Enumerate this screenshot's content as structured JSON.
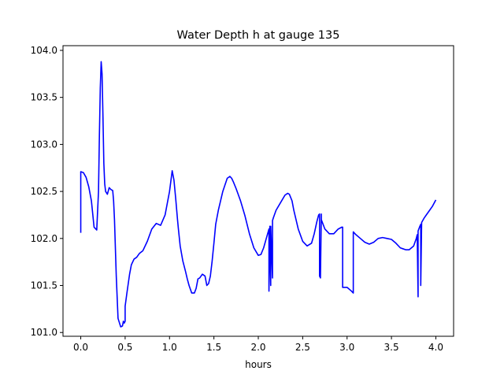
{
  "chart_data": {
    "type": "line",
    "title": "Water Depth h at gauge 135",
    "xlabel": "hours",
    "ylabel": "",
    "xlim": [
      -0.2,
      4.2
    ],
    "ylim": [
      100.96,
      104.05
    ],
    "x_ticks": [
      0.0,
      0.5,
      1.0,
      1.5,
      2.0,
      2.5,
      3.0,
      3.5,
      4.0
    ],
    "x_tick_labels": [
      "0.0",
      "0.5",
      "1.0",
      "1.5",
      "2.0",
      "2.5",
      "3.0",
      "3.5",
      "4.0"
    ],
    "y_ticks": [
      101.0,
      101.5,
      102.0,
      102.5,
      103.0,
      103.5,
      104.0
    ],
    "y_tick_labels": [
      "101.0",
      "101.5",
      "102.0",
      "102.5",
      "103.0",
      "103.5",
      "104.0"
    ],
    "grid": false,
    "series": [
      {
        "color": "#0000ff",
        "x": [
          0.0,
          0.0,
          0.03,
          0.06,
          0.09,
          0.12,
          0.15,
          0.18,
          0.2,
          0.21,
          0.22,
          0.23,
          0.24,
          0.25,
          0.26,
          0.27,
          0.28,
          0.3,
          0.32,
          0.34,
          0.36,
          0.37,
          0.38,
          0.4,
          0.42,
          0.45,
          0.47,
          0.48,
          0.49,
          0.5,
          0.5,
          0.52,
          0.55,
          0.57,
          0.6,
          0.63,
          0.66,
          0.7,
          0.75,
          0.8,
          0.85,
          0.9,
          0.95,
          0.97,
          1.0,
          1.03,
          1.05,
          1.07,
          1.09,
          1.1,
          1.12,
          1.15,
          1.18,
          1.2,
          1.22,
          1.25,
          1.28,
          1.3,
          1.32,
          1.34,
          1.37,
          1.4,
          1.42,
          1.44,
          1.46,
          1.48,
          1.5,
          1.52,
          1.55,
          1.6,
          1.65,
          1.68,
          1.7,
          1.72,
          1.75,
          1.8,
          1.85,
          1.9,
          1.95,
          2.0,
          2.03,
          2.06,
          2.09,
          2.12,
          2.12,
          2.13,
          2.14,
          2.14,
          2.16,
          2.16,
          2.17,
          2.2,
          2.25,
          2.3,
          2.33,
          2.35,
          2.38,
          2.4,
          2.45,
          2.5,
          2.55,
          2.6,
          2.63,
          2.66,
          2.68,
          2.69,
          2.69,
          2.7,
          2.71,
          2.71,
          2.75,
          2.8,
          2.85,
          2.9,
          2.94,
          2.95,
          2.95,
          2.98,
          3.0,
          3.05,
          3.07,
          3.07,
          3.1,
          3.15,
          3.2,
          3.25,
          3.3,
          3.35,
          3.4,
          3.45,
          3.5,
          3.55,
          3.6,
          3.63,
          3.66,
          3.7,
          3.75,
          3.78,
          3.79,
          3.8,
          3.8,
          3.82,
          3.83,
          3.83,
          3.84,
          3.87,
          3.9,
          3.93,
          3.96,
          4.0
        ],
        "y": [
          102.06,
          102.71,
          102.7,
          102.65,
          102.55,
          102.4,
          102.12,
          102.09,
          102.5,
          103.1,
          103.6,
          103.88,
          103.75,
          103.3,
          102.8,
          102.58,
          102.5,
          102.47,
          102.54,
          102.52,
          102.51,
          102.4,
          102.2,
          101.6,
          101.15,
          101.06,
          101.07,
          101.12,
          101.1,
          101.12,
          101.28,
          101.42,
          101.62,
          101.72,
          101.78,
          101.8,
          101.84,
          101.87,
          101.97,
          102.1,
          102.16,
          102.14,
          102.25,
          102.35,
          102.5,
          102.72,
          102.62,
          102.42,
          102.2,
          102.1,
          101.92,
          101.76,
          101.65,
          101.57,
          101.5,
          101.42,
          101.42,
          101.47,
          101.57,
          101.58,
          101.62,
          101.6,
          101.5,
          101.52,
          101.6,
          101.76,
          101.95,
          102.15,
          102.3,
          102.5,
          102.64,
          102.66,
          102.64,
          102.6,
          102.53,
          102.4,
          102.24,
          102.05,
          101.9,
          101.82,
          101.83,
          101.9,
          102.0,
          102.1,
          101.44,
          102.13,
          101.5,
          102.13,
          101.58,
          102.19,
          102.22,
          102.3,
          102.38,
          102.46,
          102.48,
          102.47,
          102.4,
          102.3,
          102.1,
          101.97,
          101.92,
          101.95,
          102.05,
          102.18,
          102.25,
          102.26,
          101.6,
          101.58,
          102.26,
          102.2,
          102.1,
          102.05,
          102.05,
          102.1,
          102.12,
          102.12,
          101.48,
          101.48,
          101.48,
          101.44,
          101.42,
          102.07,
          102.04,
          102.0,
          101.96,
          101.94,
          101.96,
          102.0,
          102.01,
          102.0,
          101.99,
          101.95,
          101.9,
          101.89,
          101.88,
          101.88,
          101.92,
          102.0,
          102.04,
          101.38,
          102.08,
          102.13,
          102.15,
          101.5,
          102.17,
          102.22,
          102.26,
          102.3,
          102.34,
          102.41
        ]
      }
    ]
  }
}
